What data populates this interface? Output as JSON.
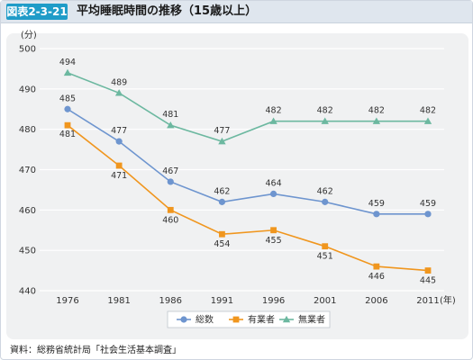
{
  "header": {
    "figure_label": "図表2-3-21",
    "title": "平均睡眠時間の推移（15歳以上）"
  },
  "footer": {
    "source": "資料：総務省統計局「社会生活基本調査」"
  },
  "colors": {
    "total": "#6e95cf",
    "employed": "#f0961e",
    "unemployed": "#6cb8a0"
  },
  "chart_data": {
    "type": "line",
    "title": "平均睡眠時間の推移（15歳以上）",
    "ylabel": "(分)",
    "xunit": "(年)",
    "ylim": [
      440,
      500
    ],
    "yticks": [
      440,
      450,
      460,
      470,
      480,
      490,
      500
    ],
    "categories": [
      "1976",
      "1981",
      "1986",
      "1991",
      "1996",
      "2001",
      "2006",
      "2011"
    ],
    "series": [
      {
        "name": "総数",
        "marker": "circle",
        "color": "#6e95cf",
        "values": [
          485,
          477,
          467,
          462,
          464,
          462,
          459,
          459
        ]
      },
      {
        "name": "有業者",
        "marker": "square",
        "color": "#f0961e",
        "values": [
          481,
          471,
          460,
          454,
          455,
          451,
          446,
          445
        ]
      },
      {
        "name": "無業者",
        "marker": "triangle",
        "color": "#6cb8a0",
        "values": [
          494,
          489,
          481,
          477,
          482,
          482,
          482,
          482
        ]
      }
    ],
    "grid": true,
    "legend": "bottom"
  }
}
